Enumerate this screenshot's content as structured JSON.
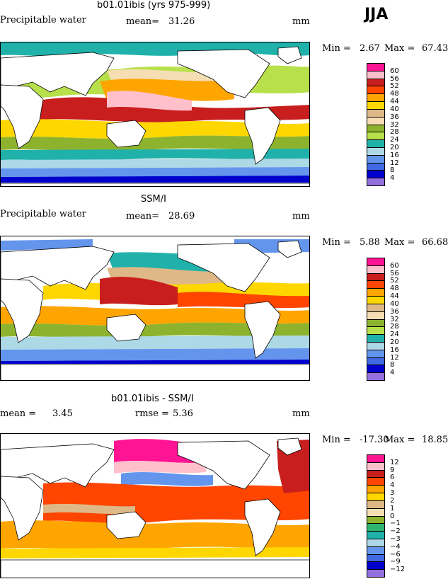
{
  "season": "JJA",
  "panels": [
    {
      "title": "b01.01ibis (yrs 975-999)",
      "left_label": "Precipitable water",
      "stat_label": "mean=",
      "stat_value": "31.26",
      "stat2_label": "",
      "stat2_value": "",
      "units": "mm",
      "min_label": "Min =",
      "min_value": "2.67",
      "max_label": "Max =",
      "max_value": "67.43",
      "legend": [
        "60",
        "56",
        "52",
        "48",
        "44",
        "40",
        "36",
        "32",
        "28",
        "24",
        "20",
        "16",
        "12",
        "8",
        "4"
      ]
    },
    {
      "title": "SSM/I",
      "left_label": "Precipitable water",
      "stat_label": "mean=",
      "stat_value": "28.69",
      "stat2_label": "",
      "stat2_value": "",
      "units": "mm",
      "min_label": "Min =",
      "min_value": "5.88",
      "max_label": "Max =",
      "max_value": "66.68",
      "legend": [
        "60",
        "56",
        "52",
        "48",
        "44",
        "40",
        "36",
        "32",
        "28",
        "24",
        "20",
        "16",
        "12",
        "8",
        "4"
      ]
    },
    {
      "title": "b01.01ibis - SSM/I",
      "left_label": "mean =",
      "stat_label": "",
      "stat_value": "3.45",
      "stat2_label": "rmse =",
      "stat2_value": "5.36",
      "units": "mm",
      "min_label": "Min =",
      "min_value": "-17.30",
      "max_label": "Max =",
      "max_value": "18.85",
      "legend": [
        "12",
        "9",
        "6",
        "4",
        "3",
        "2",
        "1",
        "0",
        "−1",
        "−2",
        "−3",
        "−4",
        "−6",
        "−9",
        "−12"
      ]
    }
  ],
  "colors": {
    "abs": [
      "#ff1493",
      "#ffc0cb",
      "#c81e1e",
      "#ff4500",
      "#ffa500",
      "#ffd700",
      "#deb887",
      "#f5deb3",
      "#8db32e",
      "#b7e04a",
      "#20b2aa",
      "#add8e6",
      "#6495ed",
      "#4169e1",
      "#0000cd",
      "#9370db"
    ],
    "diff": [
      "#ff1493",
      "#ffc0cb",
      "#c81e1e",
      "#ff4500",
      "#ffa500",
      "#ffd700",
      "#deb887",
      "#f5deb3",
      "#8db32e",
      "#2fb56f",
      "#20b2aa",
      "#add8e6",
      "#6495ed",
      "#4169e1",
      "#0000cd",
      "#9370db"
    ]
  }
}
